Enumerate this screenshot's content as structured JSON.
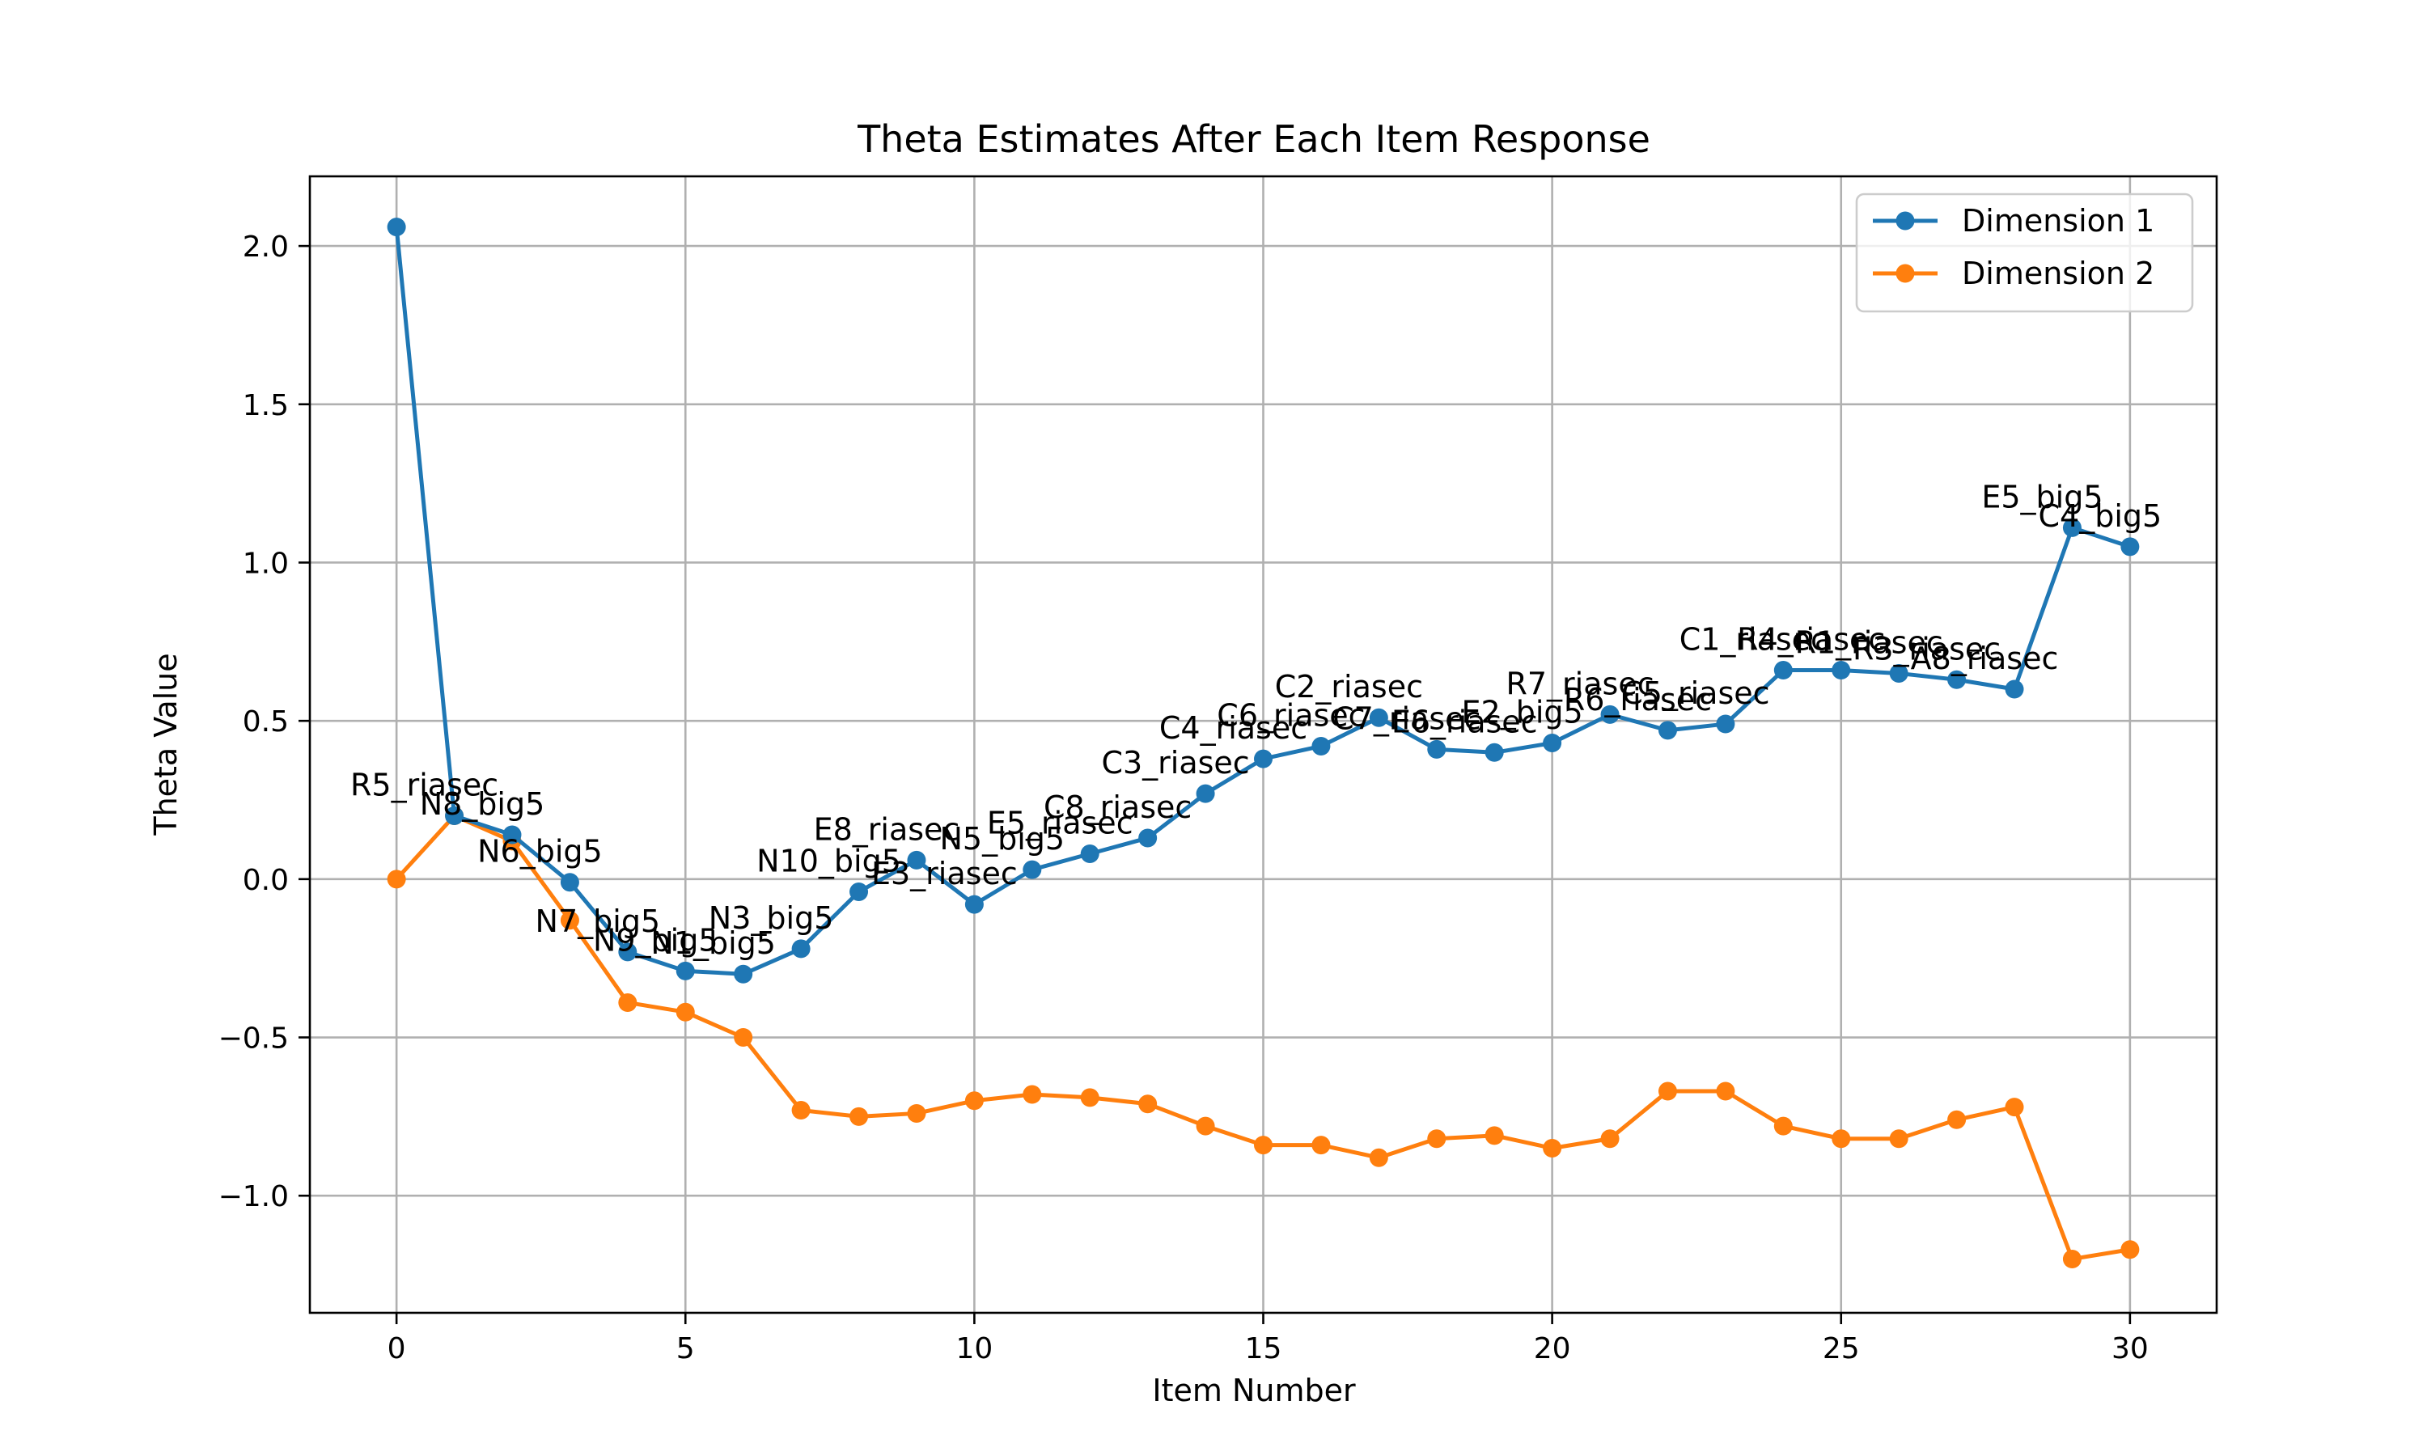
{
  "chart_data": {
    "type": "line",
    "title": "Theta Estimates After Each Item Response",
    "xlabel": "Item Number",
    "ylabel": "Theta Value",
    "xlim": [
      -1.5,
      31.5
    ],
    "ylim": [
      -1.37,
      2.22
    ],
    "xticks": [
      0,
      5,
      10,
      15,
      20,
      25,
      30
    ],
    "yticks": [
      -1.0,
      -0.5,
      0.0,
      0.5,
      1.0,
      1.5,
      2.0
    ],
    "xtick_labels": [
      "0",
      "5",
      "10",
      "15",
      "20",
      "25",
      "30"
    ],
    "ytick_labels": [
      "−1.0",
      "−0.5",
      "0.0",
      "0.5",
      "1.0",
      "1.5",
      "2.0"
    ],
    "grid": true,
    "legend_position": "top-right",
    "x": [
      0,
      1,
      2,
      3,
      4,
      5,
      6,
      7,
      8,
      9,
      10,
      11,
      12,
      13,
      14,
      15,
      16,
      17,
      18,
      19,
      20,
      21,
      22,
      23,
      24,
      25,
      26,
      27,
      28,
      29,
      30
    ],
    "series": [
      {
        "name": "Dimension 1",
        "color": "#1f77b4",
        "values": [
          2.06,
          0.2,
          0.14,
          -0.01,
          -0.23,
          -0.29,
          -0.3,
          -0.22,
          -0.04,
          0.06,
          -0.08,
          0.03,
          0.08,
          0.13,
          0.27,
          0.38,
          0.42,
          0.51,
          0.41,
          0.4,
          0.43,
          0.52,
          0.47,
          0.49,
          0.66,
          0.66,
          0.65,
          0.63,
          0.6,
          1.11,
          1.05
        ]
      },
      {
        "name": "Dimension 2",
        "color": "#ff7f0e",
        "values": [
          0.0,
          0.2,
          0.12,
          -0.13,
          -0.39,
          -0.42,
          -0.5,
          -0.73,
          -0.75,
          -0.74,
          -0.7,
          -0.68,
          -0.69,
          -0.71,
          -0.78,
          -0.84,
          -0.84,
          -0.88,
          -0.82,
          -0.81,
          -0.85,
          -0.82,
          -0.67,
          -0.67,
          -0.78,
          -0.82,
          -0.82,
          -0.76,
          -0.72,
          -1.2,
          -1.17
        ]
      }
    ],
    "annotations": [
      {
        "x": 1,
        "text": "R5_riasec"
      },
      {
        "x": 2,
        "text": "N8_big5"
      },
      {
        "x": 3,
        "text": "N6_big5"
      },
      {
        "x": 4,
        "text": "N7_big5"
      },
      {
        "x": 5,
        "text": "N9_big5"
      },
      {
        "x": 6,
        "text": "N1_big5"
      },
      {
        "x": 7,
        "text": "N3_big5"
      },
      {
        "x": 8,
        "text": "N10_big5"
      },
      {
        "x": 9,
        "text": "E8_riasec"
      },
      {
        "x": 10,
        "text": "E3_riasec"
      },
      {
        "x": 11,
        "text": "N5_big5"
      },
      {
        "x": 12,
        "text": "E5_riasec"
      },
      {
        "x": 13,
        "text": "C8_riasec"
      },
      {
        "x": 14,
        "text": "C3_riasec"
      },
      {
        "x": 15,
        "text": "C4_riasec"
      },
      {
        "x": 16,
        "text": "C6_riasec"
      },
      {
        "x": 17,
        "text": "C2_riasec"
      },
      {
        "x": 18,
        "text": "C7_riasec"
      },
      {
        "x": 19,
        "text": "E6_riasec"
      },
      {
        "x": 20,
        "text": "E2_big5"
      },
      {
        "x": 21,
        "text": "R7_riasec"
      },
      {
        "x": 22,
        "text": "R6_riasec"
      },
      {
        "x": 23,
        "text": "C5_riasec"
      },
      {
        "x": 24,
        "text": "C1_riasec"
      },
      {
        "x": 25,
        "text": "R4_riasec"
      },
      {
        "x": 26,
        "text": "R1_riasec"
      },
      {
        "x": 27,
        "text": "R3_riasec"
      },
      {
        "x": 28,
        "text": "A8_riasec"
      },
      {
        "x": 29,
        "text": "E5_big5"
      },
      {
        "x": 30,
        "text": "C4_big5"
      }
    ]
  }
}
